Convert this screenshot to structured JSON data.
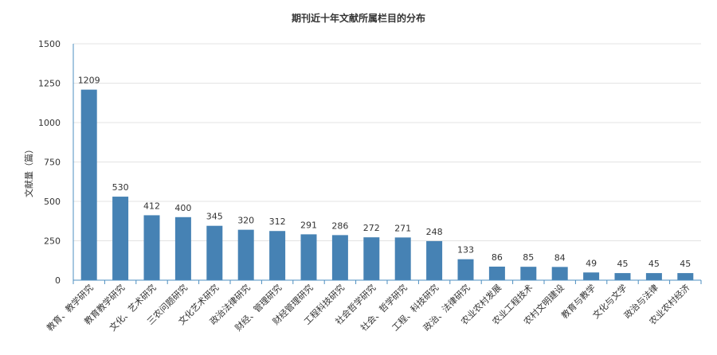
{
  "chart_data": {
    "type": "bar",
    "title": "期刊近十年文献所属栏目的分布",
    "xlabel": "",
    "ylabel": "文献量（篇）",
    "ylim": [
      0,
      1500
    ],
    "yticks": [
      0,
      250,
      500,
      750,
      1000,
      1250,
      1500
    ],
    "grid": true,
    "legend": "none",
    "categories": [
      "教育、教学研究",
      "教育教学研究",
      "文化、艺术研究",
      "三农问题研究",
      "文化艺术研究",
      "政治法律研究",
      "财经、管理研究",
      "财经管理研究",
      "工程科技研究",
      "社会哲学研究",
      "社会、哲学研究",
      "工程、科技研究",
      "政治、法律研究",
      "农业农村发展",
      "农业工程技术",
      "农村文明建设",
      "教育与教学",
      "文化与文学",
      "政治与法律",
      "农业农村经济"
    ],
    "values": [
      1209,
      530,
      412,
      400,
      345,
      320,
      312,
      291,
      286,
      272,
      271,
      248,
      133,
      86,
      85,
      84,
      49,
      45,
      45,
      45
    ],
    "colors": {
      "bar": "#4682b4",
      "axis": "#4d8fc0",
      "grid": "#e3e3e3",
      "text": "#333333"
    }
  }
}
